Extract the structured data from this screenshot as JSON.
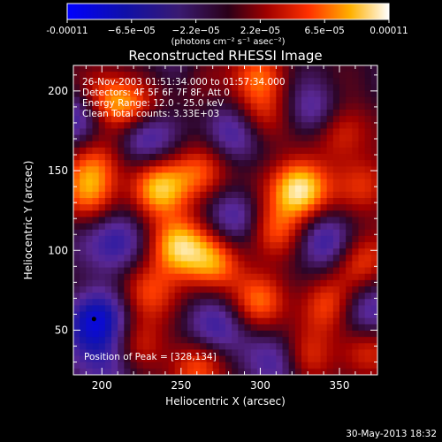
{
  "colorbar": {
    "tick_labels": [
      "-0.00011",
      "−6.5e−05",
      "−2.2e−05",
      "2.2e−05",
      "6.5e−05",
      "0.00011"
    ],
    "units": "(photons cm⁻² s⁻¹ asec⁻²)"
  },
  "chart_data": {
    "type": "heatmap",
    "title": "Reconstructed RHESSI Image",
    "xlabel": "Heliocentric X (arcsec)",
    "ylabel": "Heliocentric Y (arcsec)",
    "xlim": [
      182,
      374
    ],
    "ylim": [
      22,
      216
    ],
    "xticks": [
      200,
      250,
      300,
      350
    ],
    "yticks": [
      50,
      100,
      150,
      200
    ],
    "zlim": [
      -0.00011,
      0.00011
    ],
    "colormap": "RHESSI blue-white-red",
    "annotations": [
      "26-Nov-2003 01:51:34.000 to 01:57:34.000",
      "Detectors: 4F 5F 6F 7F 8F, Att 0",
      "Energy Range: 12.0 - 25.0 keV",
      "Clean    Total counts: 3.33E+03"
    ],
    "peak_label": "Position of Peak = [328,134]",
    "peak": [
      328,
      134
    ],
    "sources": [
      {
        "x": 325,
        "y": 138,
        "amp": 1.0
      },
      {
        "x": 247,
        "y": 103,
        "amp": 0.85
      },
      {
        "x": 271,
        "y": 91,
        "amp": 0.6
      },
      {
        "x": 235,
        "y": 139,
        "amp": 0.7
      },
      {
        "x": 263,
        "y": 148,
        "amp": 0.55
      },
      {
        "x": 307,
        "y": 112,
        "amp": 0.55
      },
      {
        "x": 300,
        "y": 68,
        "amp": 0.5
      },
      {
        "x": 327,
        "y": 32,
        "amp": 0.55
      },
      {
        "x": 341,
        "y": 65,
        "amp": 0.5
      },
      {
        "x": 362,
        "y": 94,
        "amp": 0.5
      },
      {
        "x": 350,
        "y": 175,
        "amp": 0.55
      },
      {
        "x": 300,
        "y": 183,
        "amp": 0.45
      },
      {
        "x": 203,
        "y": 195,
        "amp": 0.55
      },
      {
        "x": 195,
        "y": 155,
        "amp": 0.45
      },
      {
        "x": 220,
        "y": 190,
        "amp": 0.5
      },
      {
        "x": 262,
        "y": 208,
        "amp": 0.4
      },
      {
        "x": 300,
        "y": 210,
        "amp": 0.45
      },
      {
        "x": 193,
        "y": 135,
        "amp": 0.5
      },
      {
        "x": 227,
        "y": 74,
        "amp": 0.45
      },
      {
        "x": 260,
        "y": 26,
        "amp": 0.5
      },
      {
        "x": 225,
        "y": 40,
        "amp": 0.4
      },
      {
        "x": 368,
        "y": 140,
        "amp": 0.4
      },
      {
        "x": 365,
        "y": 38,
        "amp": 0.45
      },
      {
        "x": 196,
        "y": 56,
        "amp": -0.8
      },
      {
        "x": 210,
        "y": 105,
        "amp": -0.55
      },
      {
        "x": 225,
        "y": 172,
        "amp": -0.5
      },
      {
        "x": 185,
        "y": 185,
        "amp": -0.45
      },
      {
        "x": 282,
        "y": 175,
        "amp": -0.5
      },
      {
        "x": 285,
        "y": 120,
        "amp": -0.45
      },
      {
        "x": 340,
        "y": 105,
        "amp": -0.5
      },
      {
        "x": 335,
        "y": 185,
        "amp": -0.45
      },
      {
        "x": 315,
        "y": 30,
        "amp": -0.55
      },
      {
        "x": 272,
        "y": 50,
        "amp": -0.45
      },
      {
        "x": 365,
        "y": 60,
        "amp": -0.45
      },
      {
        "x": 250,
        "y": 212,
        "amp": -0.35
      },
      {
        "x": 205,
        "y": 30,
        "amp": -0.4
      }
    ]
  },
  "footer": {
    "date": "30-May-2013 18:32"
  }
}
